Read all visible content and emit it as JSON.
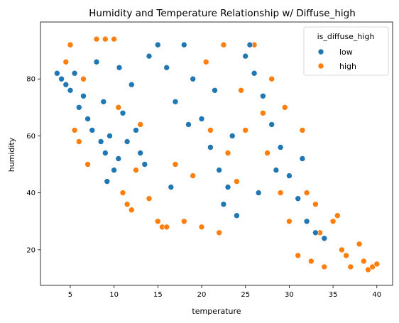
{
  "chart_data": {
    "type": "scatter",
    "title": "Humidity and Temperature Relationship w/ Diffuse_high",
    "xlabel": "temperature",
    "ylabel": "humidity",
    "xlim": [
      1.6,
      41.8
    ],
    "ylim": [
      7.5,
      100
    ],
    "xticks": [
      5,
      10,
      15,
      20,
      25,
      30,
      35,
      40
    ],
    "yticks": [
      20,
      40,
      60,
      80
    ],
    "grid": false,
    "legend": {
      "title": "is_diffuse_high",
      "placement": "top-right",
      "entries": [
        "low",
        "high"
      ]
    },
    "colors": {
      "low": "#1f77b4",
      "high": "#ff7f0e"
    },
    "series": [
      {
        "name": "low",
        "color": "#1f77b4",
        "points": [
          [
            3.5,
            82
          ],
          [
            4.0,
            80
          ],
          [
            4.5,
            78
          ],
          [
            5.0,
            76
          ],
          [
            5.5,
            82
          ],
          [
            6.0,
            70
          ],
          [
            6.5,
            74
          ],
          [
            7.0,
            66
          ],
          [
            7.5,
            62
          ],
          [
            8.0,
            86
          ],
          [
            8.5,
            58
          ],
          [
            9.0,
            54
          ],
          [
            9.5,
            60
          ],
          [
            10.0,
            48
          ],
          [
            10.5,
            52
          ],
          [
            11.0,
            68
          ],
          [
            11.5,
            58
          ],
          [
            12.0,
            78
          ],
          [
            12.5,
            62
          ],
          [
            13.0,
            54
          ],
          [
            14.0,
            88
          ],
          [
            15.0,
            92
          ],
          [
            16.0,
            84
          ],
          [
            17.0,
            72
          ],
          [
            18.0,
            92
          ],
          [
            19.0,
            80
          ],
          [
            20.0,
            66
          ],
          [
            21.0,
            56
          ],
          [
            22.0,
            48
          ],
          [
            22.5,
            36
          ],
          [
            23.0,
            42
          ],
          [
            24.0,
            32
          ],
          [
            25.0,
            88
          ],
          [
            25.5,
            92
          ],
          [
            26.0,
            82
          ],
          [
            27.0,
            74
          ],
          [
            28.0,
            64
          ],
          [
            29.0,
            56
          ],
          [
            30.0,
            46
          ],
          [
            31.0,
            38
          ],
          [
            32.0,
            30
          ],
          [
            33.0,
            26
          ],
          [
            34.0,
            24
          ],
          [
            8.8,
            72
          ],
          [
            9.2,
            44
          ],
          [
            10.6,
            84
          ],
          [
            13.5,
            50
          ],
          [
            16.5,
            42
          ],
          [
            18.5,
            64
          ],
          [
            21.5,
            76
          ],
          [
            23.5,
            60
          ],
          [
            26.5,
            40
          ],
          [
            28.5,
            48
          ],
          [
            31.5,
            52
          ]
        ]
      },
      {
        "name": "high",
        "color": "#ff7f0e",
        "points": [
          [
            4.5,
            86
          ],
          [
            5.0,
            92
          ],
          [
            5.5,
            62
          ],
          [
            6.0,
            58
          ],
          [
            6.5,
            80
          ],
          [
            7.0,
            50
          ],
          [
            8.0,
            94
          ],
          [
            9.0,
            94
          ],
          [
            10.0,
            94
          ],
          [
            10.5,
            70
          ],
          [
            11.0,
            40
          ],
          [
            11.5,
            36
          ],
          [
            12.0,
            34
          ],
          [
            12.5,
            48
          ],
          [
            13.0,
            64
          ],
          [
            14.0,
            38
          ],
          [
            15.0,
            30
          ],
          [
            15.5,
            28
          ],
          [
            16.0,
            28
          ],
          [
            17.0,
            50
          ],
          [
            18.0,
            30
          ],
          [
            19.0,
            46
          ],
          [
            20.0,
            28
          ],
          [
            21.0,
            62
          ],
          [
            22.0,
            26
          ],
          [
            23.0,
            54
          ],
          [
            24.0,
            44
          ],
          [
            25.0,
            62
          ],
          [
            26.0,
            92
          ],
          [
            27.0,
            68
          ],
          [
            28.0,
            80
          ],
          [
            29.0,
            40
          ],
          [
            30.0,
            30
          ],
          [
            31.0,
            18
          ],
          [
            31.5,
            62
          ],
          [
            32.0,
            40
          ],
          [
            32.5,
            16
          ],
          [
            33.0,
            36
          ],
          [
            34.0,
            14
          ],
          [
            35.0,
            30
          ],
          [
            35.5,
            32
          ],
          [
            36.0,
            20
          ],
          [
            36.5,
            18
          ],
          [
            37.0,
            14
          ],
          [
            38.0,
            22
          ],
          [
            38.5,
            16
          ],
          [
            39.0,
            13
          ],
          [
            39.5,
            14
          ],
          [
            40.0,
            15
          ],
          [
            20.5,
            86
          ],
          [
            22.5,
            92
          ],
          [
            24.5,
            76
          ],
          [
            27.5,
            54
          ],
          [
            29.5,
            70
          ],
          [
            33.5,
            26
          ]
        ]
      }
    ]
  }
}
